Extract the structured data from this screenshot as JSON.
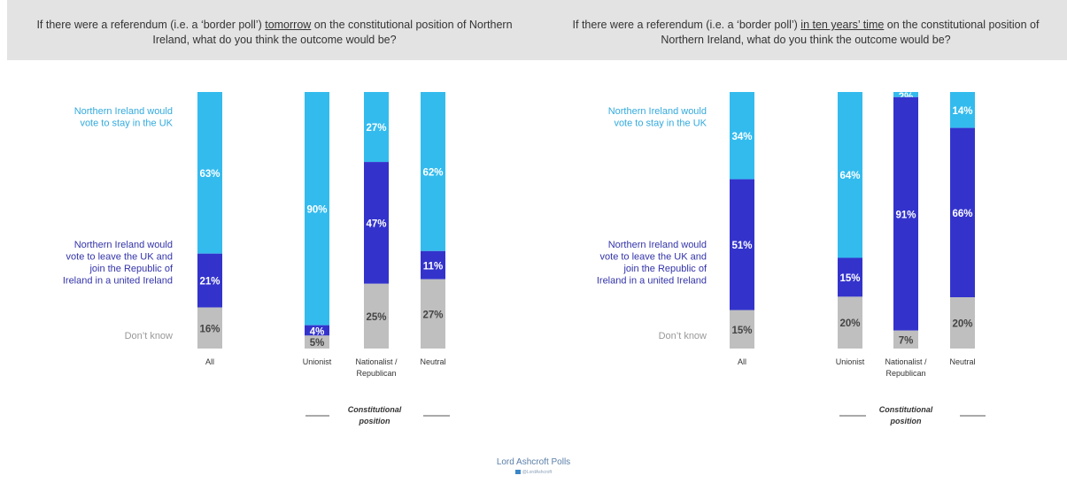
{
  "colors": {
    "stay": "#33bbee",
    "leave": "#3333cc",
    "dk": "#bfbfbf",
    "label_stay": "#33aadd",
    "label_leave": "#3333aa",
    "label_dk": "#999999"
  },
  "questions": [
    {
      "pre": "If there were a referendum (i.e. a ‘border poll’) ",
      "em": "tomorrow",
      "post": " on the constitutional position of Northern Ireland, what do you think the outcome would be?"
    },
    {
      "pre": "If there were a referendum (i.e. a ‘border poll’) ",
      "em": "in ten years’ time",
      "post": " on the constitutional position of Northern Ireland, what do you think the outcome would be?"
    }
  ],
  "legend": {
    "stay": [
      "Northern Ireland would",
      "vote to stay in the UK"
    ],
    "leave": [
      "Northern Ireland would",
      "vote to leave the UK and",
      "join the Republic of",
      "Ireland in a united Ireland"
    ],
    "dk": [
      "Don’t know"
    ]
  },
  "group_label": [
    "Constitutional",
    "position"
  ],
  "footer": {
    "title": "Lord Ashcroft Polls",
    "handle": "@LordAshcroft"
  },
  "chart_data": [
    {
      "type": "bar",
      "stacked": true,
      "categories": [
        "All",
        "Unionist",
        "Nationalist / Republican",
        "Neutral"
      ],
      "series": [
        {
          "name": "Northern Ireland would vote to stay in the UK",
          "values": [
            63,
            90,
            27,
            62
          ]
        },
        {
          "name": "Northern Ireland would vote to leave the UK and join the Republic of Ireland in a united Ireland",
          "values": [
            21,
            4,
            47,
            11
          ]
        },
        {
          "name": "Don’t know",
          "values": [
            16,
            5,
            25,
            27
          ]
        }
      ],
      "ylim": [
        0,
        100
      ]
    },
    {
      "type": "bar",
      "stacked": true,
      "categories": [
        "All",
        "Unionist",
        "Nationalist / Republican",
        "Neutral"
      ],
      "series": [
        {
          "name": "Northern Ireland would vote to stay in the UK",
          "values": [
            34,
            64,
            2,
            14
          ]
        },
        {
          "name": "Northern Ireland would vote to leave the UK and join the Republic of Ireland in a united Ireland",
          "values": [
            51,
            15,
            91,
            66
          ]
        },
        {
          "name": "Don’t know",
          "values": [
            15,
            20,
            7,
            20
          ]
        }
      ],
      "ylim": [
        0,
        100
      ]
    }
  ]
}
